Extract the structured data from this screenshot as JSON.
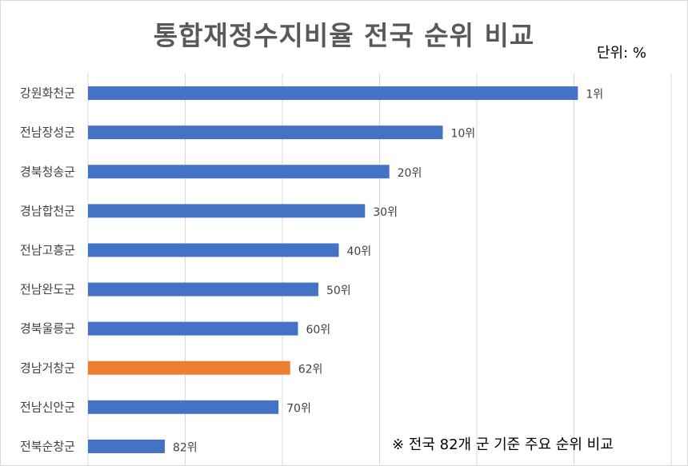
{
  "chart_data": {
    "type": "bar",
    "orientation": "horizontal",
    "title": "통합재정수지비율 전국 순위 비교",
    "unit_label": "단위: %",
    "note": "※ 전국 82개 군 기준 주요 순위 비교",
    "categories": [
      "강원화천군",
      "전남장성군",
      "경북청송군",
      "경남합천군",
      "전남고흥군",
      "전남완도군",
      "경북울릉군",
      "경남거창군",
      "전남신안군",
      "전북순창군"
    ],
    "values": [
      50.4,
      36.5,
      31.0,
      28.5,
      25.8,
      23.7,
      21.6,
      20.8,
      19.6,
      7.9
    ],
    "data_labels": [
      "1위",
      "10위",
      "20위",
      "30위",
      "40위",
      "50위",
      "60위",
      "62위",
      "70위",
      "82위"
    ],
    "highlight_index": 7,
    "xlim": [
      0,
      60
    ],
    "grid_step": 10,
    "grid": true,
    "colors": {
      "bar": "#4472c4",
      "highlight": "#ed7d31",
      "grid": "#d9d9d9"
    }
  }
}
